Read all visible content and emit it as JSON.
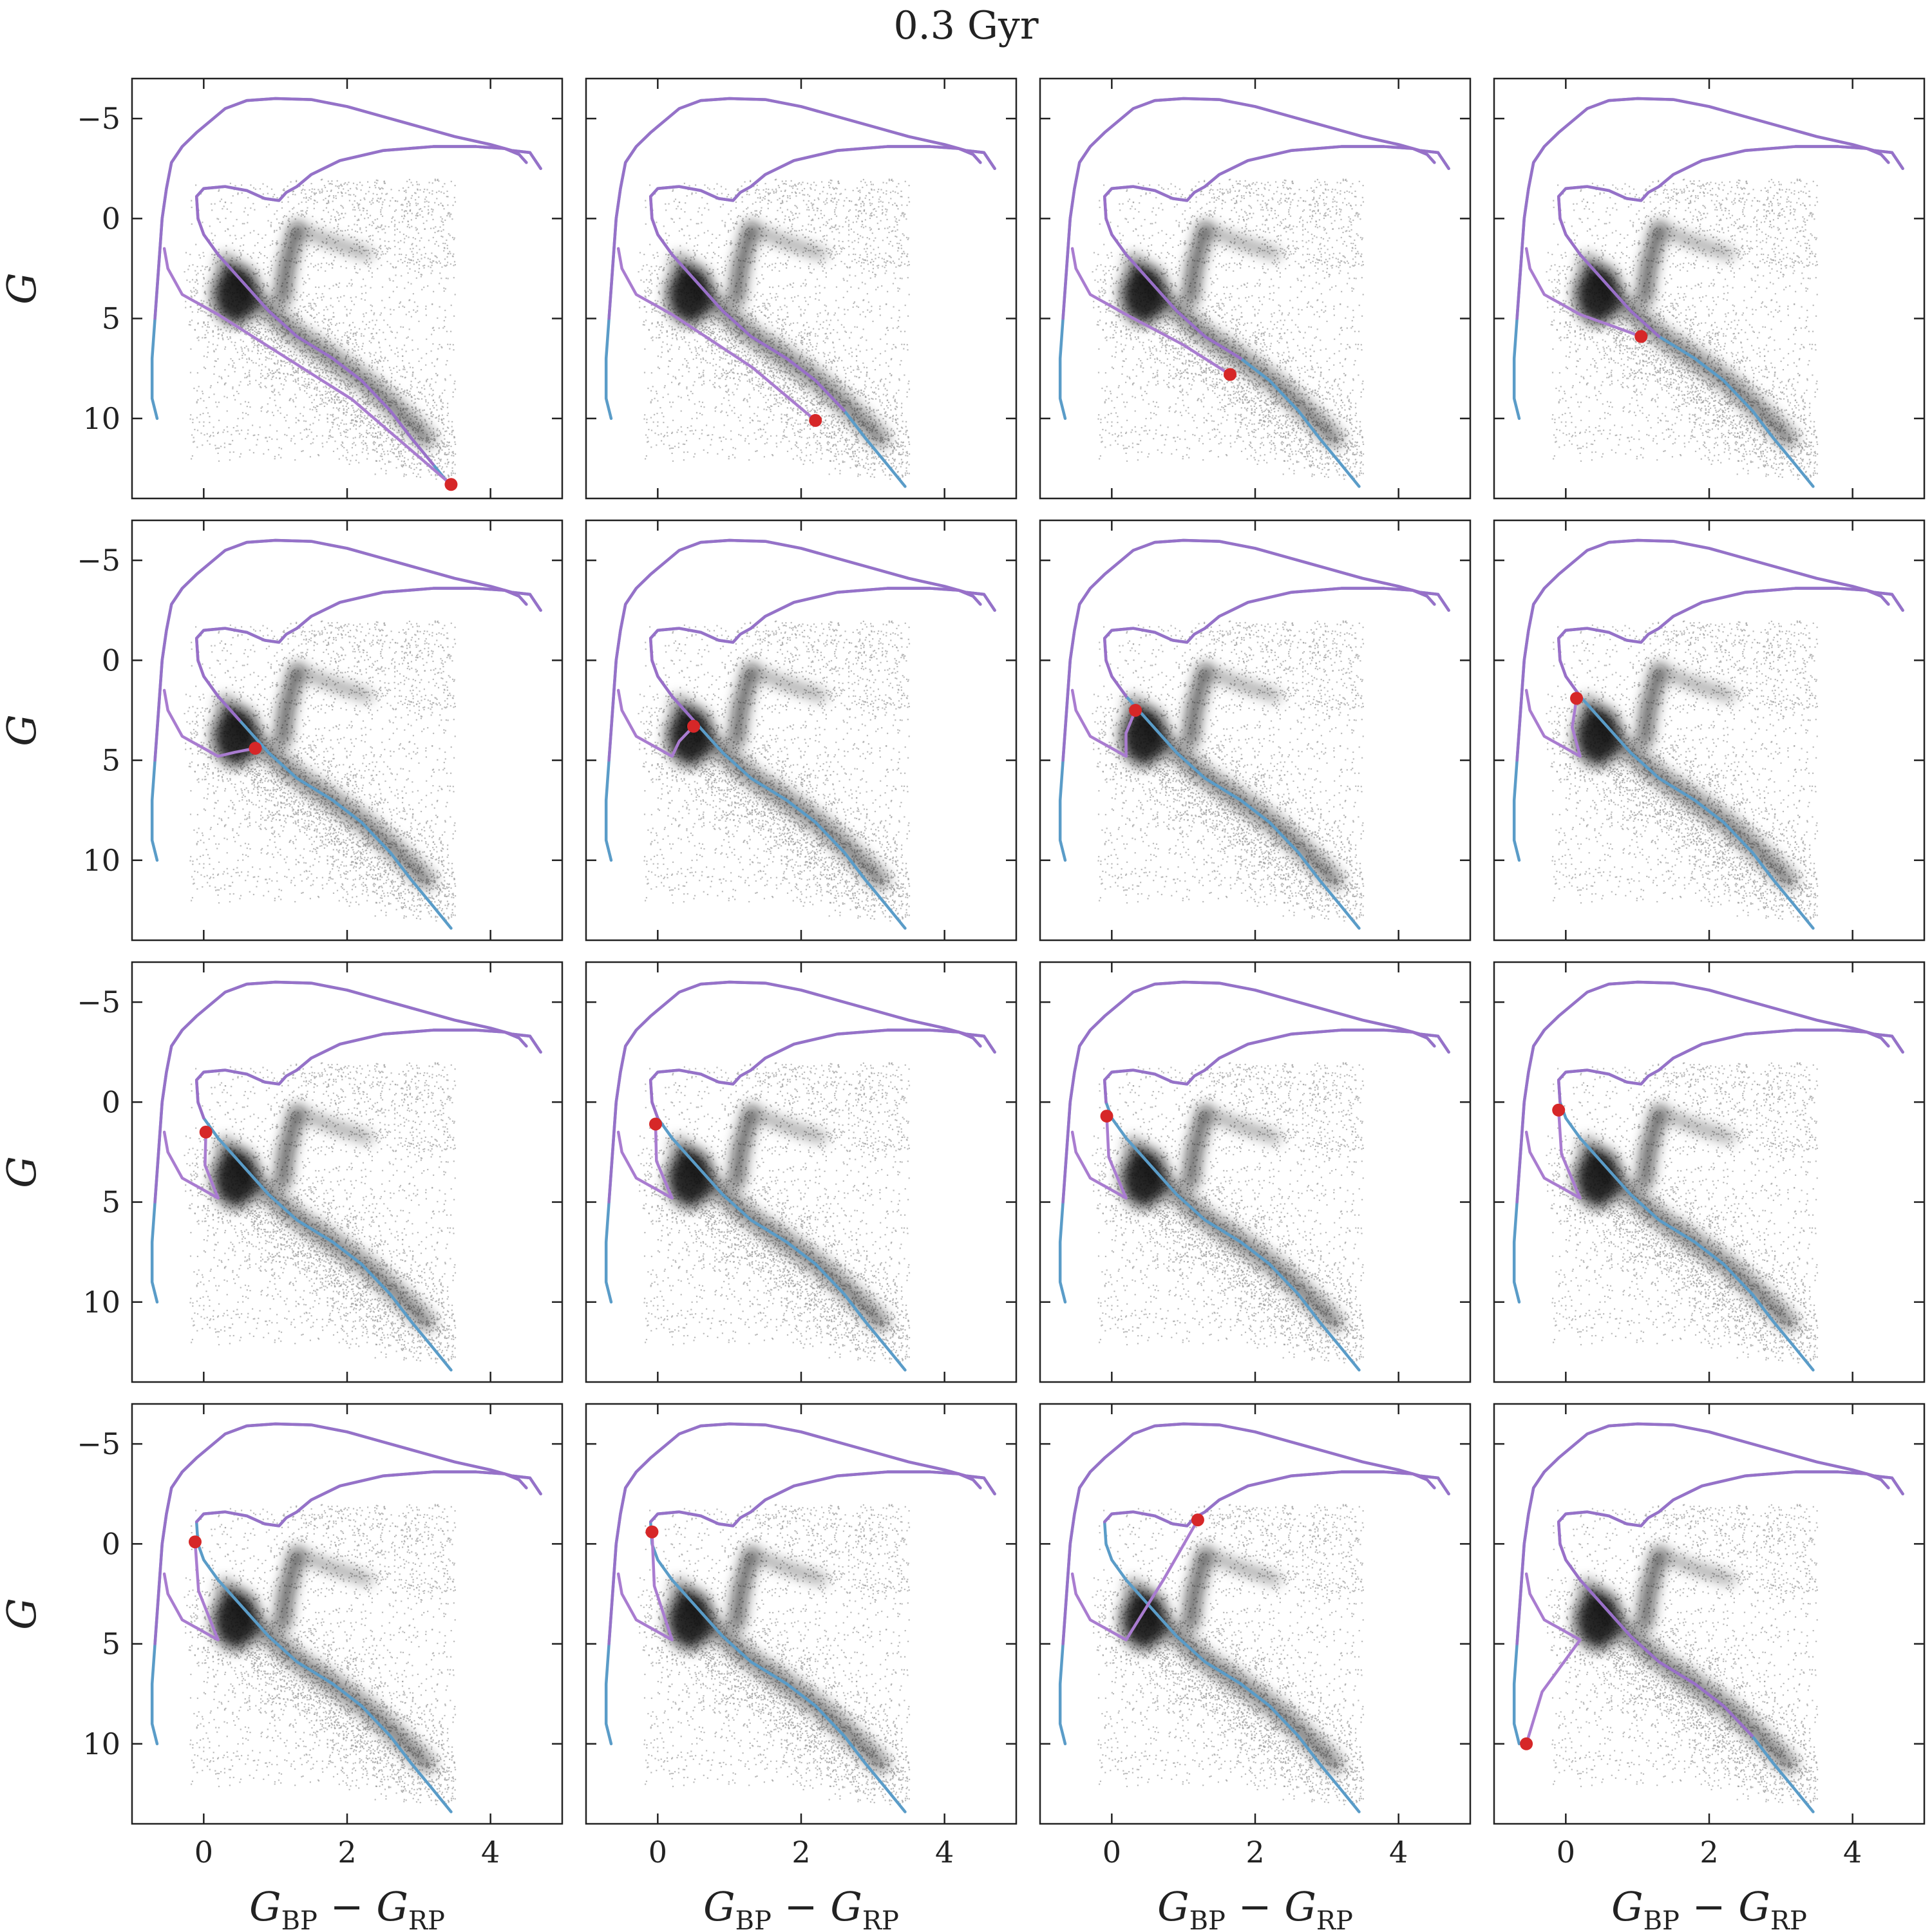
{
  "figure": {
    "title": "0.3 Gyr",
    "xlabel": "G_BP − G_RP",
    "xlabel_main": "G",
    "xlabel_sub1": "BP",
    "xlabel_minus": " − ",
    "xlabel_sub2": "RP",
    "ylabel": "G"
  },
  "colors": {
    "background_points": "#9e9e9e",
    "dense_core": "#111111",
    "primary_track": "#5a9cc8",
    "secondary_track": "#9a6fc8",
    "secondary_track_light": "#a97cd0",
    "current_star": "#d62728"
  },
  "chart_data": {
    "type": "scatter",
    "layout": "4x4 grid of panels, shared axes",
    "xlim": [
      -1.0,
      5.0
    ],
    "ylim": [
      14.0,
      -7.0
    ],
    "y_inverted": true,
    "xticks": [
      0,
      2,
      4
    ],
    "xtick_labels": [
      "0",
      "2",
      "4"
    ],
    "yticks": [
      -5,
      0,
      5,
      10
    ],
    "ytick_labels": [
      "−5",
      "0",
      "5",
      "10"
    ],
    "background": "Gaia color–magnitude density (grey points, black density core)",
    "series_per_panel": [
      "primary star track",
      "secondary star track",
      "current position marker"
    ],
    "markers": [
      {
        "panel": 1,
        "x": 3.45,
        "y": 13.3
      },
      {
        "panel": 2,
        "x": 2.2,
        "y": 10.1
      },
      {
        "panel": 3,
        "x": 1.65,
        "y": 7.8
      },
      {
        "panel": 4,
        "x": 1.05,
        "y": 5.9
      },
      {
        "panel": 5,
        "x": 0.72,
        "y": 4.4
      },
      {
        "panel": 6,
        "x": 0.5,
        "y": 3.3
      },
      {
        "panel": 7,
        "x": 0.33,
        "y": 2.5
      },
      {
        "panel": 8,
        "x": 0.15,
        "y": 1.9
      },
      {
        "panel": 9,
        "x": 0.03,
        "y": 1.5
      },
      {
        "panel": 10,
        "x": -0.03,
        "y": 1.1
      },
      {
        "panel": 11,
        "x": -0.07,
        "y": 0.7
      },
      {
        "panel": 12,
        "x": -0.1,
        "y": 0.4
      },
      {
        "panel": 13,
        "x": -0.12,
        "y": -0.1
      },
      {
        "panel": 14,
        "x": -0.08,
        "y": -0.6
      },
      {
        "panel": 15,
        "x": 1.2,
        "y": -1.2
      },
      {
        "panel": 16,
        "x": -0.55,
        "y": 10.0
      }
    ]
  }
}
